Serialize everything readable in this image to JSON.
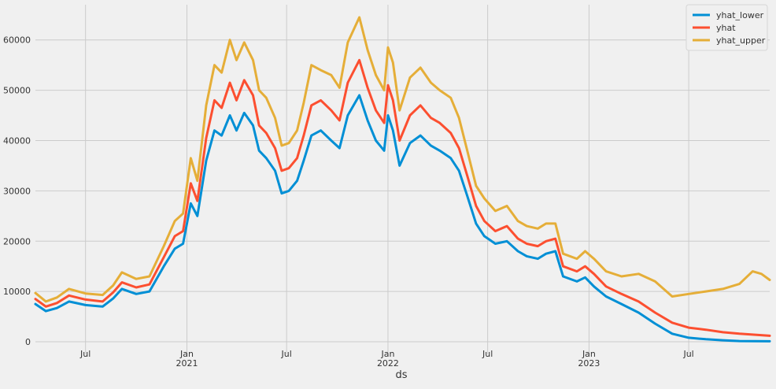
{
  "chart_data": {
    "type": "line",
    "title": "",
    "xlabel": "ds",
    "ylabel": "",
    "x_range": [
      "2020-04-01",
      "2023-11-25"
    ],
    "ylim": [
      -2500,
      67000
    ],
    "grid": true,
    "legend_position": "top-right",
    "x_ticks": [
      {
        "date": "2020-07-01",
        "label": "Jul",
        "sublabel": ""
      },
      {
        "date": "2021-01-01",
        "label": "Jan",
        "sublabel": "2021"
      },
      {
        "date": "2021-07-01",
        "label": "Jul",
        "sublabel": ""
      },
      {
        "date": "2022-01-01",
        "label": "Jan",
        "sublabel": "2022"
      },
      {
        "date": "2022-07-01",
        "label": "Jul",
        "sublabel": ""
      },
      {
        "date": "2023-01-01",
        "label": "Jan",
        "sublabel": "2023"
      },
      {
        "date": "2023-07-01",
        "label": "Jul",
        "sublabel": ""
      }
    ],
    "y_ticks": [
      0,
      10000,
      20000,
      30000,
      40000,
      50000,
      60000
    ],
    "series": [
      {
        "name": "yhat_lower",
        "color": "#008fd5",
        "points": [
          [
            "2020-04-01",
            7500
          ],
          [
            "2020-04-20",
            6100
          ],
          [
            "2020-05-10",
            6700
          ],
          [
            "2020-06-01",
            8000
          ],
          [
            "2020-07-01",
            7300
          ],
          [
            "2020-08-01",
            7000
          ],
          [
            "2020-08-20",
            8600
          ],
          [
            "2020-09-05",
            10500
          ],
          [
            "2020-10-01",
            9500
          ],
          [
            "2020-10-25",
            10000
          ],
          [
            "2020-11-20",
            15000
          ],
          [
            "2020-12-10",
            18500
          ],
          [
            "2020-12-25",
            19500
          ],
          [
            "2021-01-08",
            27500
          ],
          [
            "2021-01-20",
            25000
          ],
          [
            "2021-02-05",
            36000
          ],
          [
            "2021-02-20",
            42000
          ],
          [
            "2021-03-05",
            41000
          ],
          [
            "2021-03-20",
            45000
          ],
          [
            "2021-04-01",
            42000
          ],
          [
            "2021-04-15",
            45500
          ],
          [
            "2021-05-01",
            43000
          ],
          [
            "2021-05-12",
            38000
          ],
          [
            "2021-05-25",
            36500
          ],
          [
            "2021-06-10",
            34000
          ],
          [
            "2021-06-22",
            29500
          ],
          [
            "2021-07-05",
            30000
          ],
          [
            "2021-07-20",
            32000
          ],
          [
            "2021-08-01",
            36000
          ],
          [
            "2021-08-15",
            41000
          ],
          [
            "2021-09-01",
            42000
          ],
          [
            "2021-09-20",
            40000
          ],
          [
            "2021-10-05",
            38500
          ],
          [
            "2021-10-20",
            45000
          ],
          [
            "2021-11-10",
            49000
          ],
          [
            "2021-11-25",
            44000
          ],
          [
            "2021-12-10",
            40000
          ],
          [
            "2021-12-25",
            38000
          ],
          [
            "2022-01-01",
            45000
          ],
          [
            "2022-01-10",
            42000
          ],
          [
            "2022-01-22",
            35000
          ],
          [
            "2022-02-10",
            39500
          ],
          [
            "2022-03-01",
            41000
          ],
          [
            "2022-03-20",
            39000
          ],
          [
            "2022-04-05",
            38000
          ],
          [
            "2022-04-25",
            36500
          ],
          [
            "2022-05-10",
            34000
          ],
          [
            "2022-05-25",
            29000
          ],
          [
            "2022-06-10",
            23500
          ],
          [
            "2022-06-25",
            21000
          ],
          [
            "2022-07-15",
            19500
          ],
          [
            "2022-08-05",
            20000
          ],
          [
            "2022-08-25",
            18000
          ],
          [
            "2022-09-10",
            17000
          ],
          [
            "2022-09-30",
            16500
          ],
          [
            "2022-10-15",
            17500
          ],
          [
            "2022-11-01",
            18000
          ],
          [
            "2022-11-15",
            13000
          ],
          [
            "2022-12-10",
            12000
          ],
          [
            "2022-12-25",
            12800
          ],
          [
            "2023-01-10",
            11000
          ],
          [
            "2023-02-01",
            9000
          ],
          [
            "2023-03-01",
            7500
          ],
          [
            "2023-04-01",
            5800
          ],
          [
            "2023-05-01",
            3600
          ],
          [
            "2023-06-01",
            1600
          ],
          [
            "2023-07-01",
            800
          ],
          [
            "2023-08-01",
            500
          ],
          [
            "2023-09-01",
            300
          ],
          [
            "2023-10-01",
            150
          ],
          [
            "2023-11-25",
            100
          ]
        ]
      },
      {
        "name": "yhat",
        "color": "#fc4f30",
        "points": [
          [
            "2020-04-01",
            8500
          ],
          [
            "2020-04-20",
            7000
          ],
          [
            "2020-05-10",
            7700
          ],
          [
            "2020-06-01",
            9200
          ],
          [
            "2020-07-01",
            8400
          ],
          [
            "2020-08-01",
            8000
          ],
          [
            "2020-08-20",
            9800
          ],
          [
            "2020-09-05",
            11800
          ],
          [
            "2020-10-01",
            10800
          ],
          [
            "2020-10-25",
            11400
          ],
          [
            "2020-11-20",
            16800
          ],
          [
            "2020-12-10",
            21000
          ],
          [
            "2020-12-25",
            22000
          ],
          [
            "2021-01-08",
            31500
          ],
          [
            "2021-01-20",
            28000
          ],
          [
            "2021-02-05",
            40500
          ],
          [
            "2021-02-20",
            48000
          ],
          [
            "2021-03-05",
            46500
          ],
          [
            "2021-03-20",
            51500
          ],
          [
            "2021-04-01",
            48000
          ],
          [
            "2021-04-15",
            52000
          ],
          [
            "2021-05-01",
            49000
          ],
          [
            "2021-05-12",
            43000
          ],
          [
            "2021-05-25",
            41500
          ],
          [
            "2021-06-10",
            38500
          ],
          [
            "2021-06-22",
            34000
          ],
          [
            "2021-07-05",
            34500
          ],
          [
            "2021-07-20",
            36500
          ],
          [
            "2021-08-01",
            41000
          ],
          [
            "2021-08-15",
            47000
          ],
          [
            "2021-09-01",
            48000
          ],
          [
            "2021-09-20",
            46000
          ],
          [
            "2021-10-05",
            44000
          ],
          [
            "2021-10-20",
            51500
          ],
          [
            "2021-11-10",
            56000
          ],
          [
            "2021-11-25",
            50500
          ],
          [
            "2021-12-10",
            46000
          ],
          [
            "2021-12-25",
            43500
          ],
          [
            "2022-01-01",
            51000
          ],
          [
            "2022-01-10",
            48000
          ],
          [
            "2022-01-22",
            40000
          ],
          [
            "2022-02-10",
            45000
          ],
          [
            "2022-03-01",
            47000
          ],
          [
            "2022-03-20",
            44500
          ],
          [
            "2022-04-05",
            43500
          ],
          [
            "2022-04-25",
            41500
          ],
          [
            "2022-05-10",
            38500
          ],
          [
            "2022-05-25",
            33000
          ],
          [
            "2022-06-10",
            27000
          ],
          [
            "2022-06-25",
            24000
          ],
          [
            "2022-07-15",
            22000
          ],
          [
            "2022-08-05",
            23000
          ],
          [
            "2022-08-25",
            20500
          ],
          [
            "2022-09-10",
            19500
          ],
          [
            "2022-09-30",
            19000
          ],
          [
            "2022-10-15",
            20000
          ],
          [
            "2022-11-01",
            20500
          ],
          [
            "2022-11-15",
            15000
          ],
          [
            "2022-12-10",
            14000
          ],
          [
            "2022-12-25",
            15000
          ],
          [
            "2023-01-10",
            13500
          ],
          [
            "2023-02-01",
            11000
          ],
          [
            "2023-03-01",
            9500
          ],
          [
            "2023-04-01",
            8000
          ],
          [
            "2023-05-01",
            5800
          ],
          [
            "2023-06-01",
            3800
          ],
          [
            "2023-07-01",
            2800
          ],
          [
            "2023-08-01",
            2400
          ],
          [
            "2023-09-01",
            1900
          ],
          [
            "2023-10-01",
            1600
          ],
          [
            "2023-11-25",
            1200
          ]
        ]
      },
      {
        "name": "yhat_upper",
        "color": "#e5ae38",
        "points": [
          [
            "2020-04-01",
            9700
          ],
          [
            "2020-04-20",
            8000
          ],
          [
            "2020-05-10",
            8800
          ],
          [
            "2020-06-01",
            10500
          ],
          [
            "2020-07-01",
            9600
          ],
          [
            "2020-08-01",
            9300
          ],
          [
            "2020-08-20",
            11200
          ],
          [
            "2020-09-05",
            13800
          ],
          [
            "2020-10-01",
            12500
          ],
          [
            "2020-10-25",
            13000
          ],
          [
            "2020-11-20",
            19000
          ],
          [
            "2020-12-10",
            24000
          ],
          [
            "2020-12-25",
            25500
          ],
          [
            "2021-01-08",
            36500
          ],
          [
            "2021-01-20",
            32000
          ],
          [
            "2021-02-05",
            47000
          ],
          [
            "2021-02-20",
            55000
          ],
          [
            "2021-03-05",
            53500
          ],
          [
            "2021-03-20",
            60000
          ],
          [
            "2021-04-01",
            56000
          ],
          [
            "2021-04-15",
            59500
          ],
          [
            "2021-05-01",
            56000
          ],
          [
            "2021-05-12",
            50000
          ],
          [
            "2021-05-25",
            48500
          ],
          [
            "2021-06-10",
            44500
          ],
          [
            "2021-06-22",
            39000
          ],
          [
            "2021-07-05",
            39500
          ],
          [
            "2021-07-20",
            42000
          ],
          [
            "2021-08-01",
            47500
          ],
          [
            "2021-08-15",
            55000
          ],
          [
            "2021-09-01",
            54000
          ],
          [
            "2021-09-20",
            53000
          ],
          [
            "2021-10-05",
            50500
          ],
          [
            "2021-10-20",
            59500
          ],
          [
            "2021-11-10",
            64500
          ],
          [
            "2021-11-25",
            58000
          ],
          [
            "2021-12-10",
            53000
          ],
          [
            "2021-12-25",
            50000
          ],
          [
            "2022-01-01",
            58500
          ],
          [
            "2022-01-10",
            55500
          ],
          [
            "2022-01-22",
            46000
          ],
          [
            "2022-02-10",
            52500
          ],
          [
            "2022-03-01",
            54500
          ],
          [
            "2022-03-20",
            51500
          ],
          [
            "2022-04-05",
            50000
          ],
          [
            "2022-04-25",
            48500
          ],
          [
            "2022-05-10",
            44500
          ],
          [
            "2022-05-25",
            38000
          ],
          [
            "2022-06-10",
            31000
          ],
          [
            "2022-06-25",
            28500
          ],
          [
            "2022-07-15",
            26000
          ],
          [
            "2022-08-05",
            27000
          ],
          [
            "2022-08-25",
            24000
          ],
          [
            "2022-09-10",
            23000
          ],
          [
            "2022-09-30",
            22500
          ],
          [
            "2022-10-15",
            23500
          ],
          [
            "2022-11-01",
            23500
          ],
          [
            "2022-11-15",
            17500
          ],
          [
            "2022-12-10",
            16500
          ],
          [
            "2022-12-25",
            18000
          ],
          [
            "2023-01-10",
            16500
          ],
          [
            "2023-02-01",
            14000
          ],
          [
            "2023-03-01",
            13000
          ],
          [
            "2023-04-01",
            13500
          ],
          [
            "2023-05-01",
            12000
          ],
          [
            "2023-06-01",
            9000
          ],
          [
            "2023-07-01",
            9500
          ],
          [
            "2023-08-01",
            10000
          ],
          [
            "2023-09-01",
            10500
          ],
          [
            "2023-10-01",
            11500
          ],
          [
            "2023-10-25",
            14000
          ],
          [
            "2023-11-10",
            13500
          ],
          [
            "2023-11-25",
            12300
          ]
        ]
      }
    ]
  }
}
